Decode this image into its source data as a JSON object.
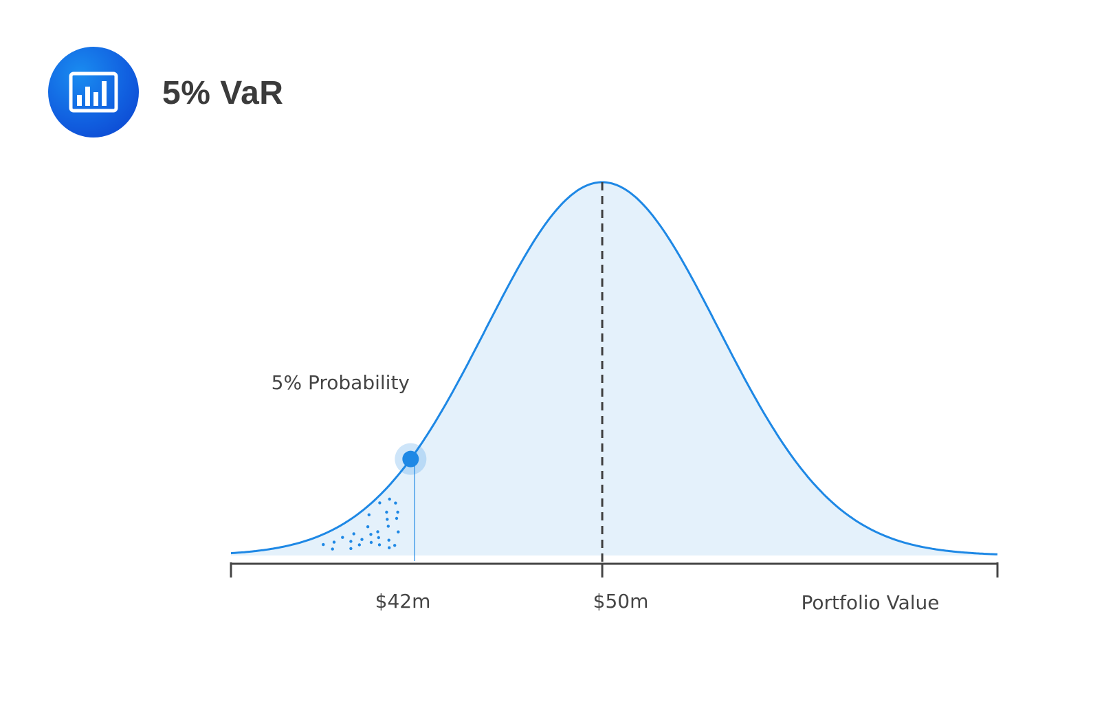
{
  "header": {
    "title": "5% VaR",
    "icon": "bar-chart-icon"
  },
  "chart_data": {
    "type": "area",
    "title": "5% VaR",
    "distribution": "normal",
    "mean": 50,
    "var_value": 42,
    "tail_probability": 0.05,
    "x_tick_labels": [
      {
        "value": 42,
        "label": "$42m"
      },
      {
        "value": 50,
        "label": "$50m"
      }
    ],
    "xlabel": "Portfolio Value",
    "annotation": "5% Probability",
    "xlim": [
      34.5,
      66.5
    ],
    "colors": {
      "curve": "#1e88e5",
      "fill": "#e4f1fb",
      "tail_dots": "#1e88e5",
      "marker": "#1e88e5",
      "mean_line": "#3d3d3d",
      "axis": "#444444"
    }
  }
}
